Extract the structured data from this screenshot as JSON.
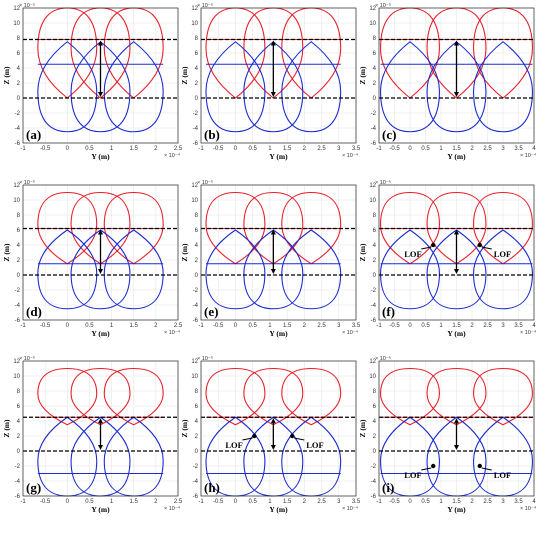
{
  "chart_data": {
    "type": "line",
    "axes": {
      "xlabel": "Y (m)",
      "ylabel": "Z (m)",
      "x_exponent_label": "× 10⁻⁴",
      "y_exponent_label": "× 10⁻⁵",
      "ylim": [
        -6,
        12
      ],
      "yticks": [
        -6,
        -4,
        -2,
        0,
        2,
        4,
        6,
        8,
        10,
        12
      ],
      "grid": true
    },
    "colors": {
      "upper": "#e8202a",
      "lower": "#1a2bd0",
      "guide": "#000000"
    },
    "xranges": [
      {
        "xlim": [
          -1,
          2.5
        ],
        "xticks": [
          -1,
          -0.5,
          0,
          0.5,
          1,
          1.5,
          2,
          2.5
        ],
        "centers": [
          0,
          0.75,
          1.5
        ]
      },
      {
        "xlim": [
          -1,
          3.5
        ],
        "xticks": [
          -1,
          -0.5,
          0,
          0.5,
          1,
          1.5,
          2,
          2.5,
          3,
          3.5
        ],
        "centers": [
          0,
          1.1,
          2.2
        ]
      },
      {
        "xlim": [
          -1,
          4
        ],
        "xticks": [
          -1,
          -0.5,
          0,
          0.5,
          1,
          1.5,
          2,
          2.5,
          3,
          3.5,
          4
        ],
        "centers": [
          0,
          1.5,
          3
        ]
      }
    ],
    "rows": [
      {
        "peak_upper": 12,
        "bottom_upper": 0,
        "top_lower": 7.5,
        "bottom_lower": -4.5,
        "guide_top": 7.8,
        "guide_bottom": 0,
        "flat_lower": 4.5
      },
      {
        "peak_upper": 11,
        "bottom_upper": 1.5,
        "top_lower": 6,
        "bottom_lower": -4.5,
        "guide_top": 6.2,
        "guide_bottom": 0,
        "flat_lower": 1.5
      },
      {
        "peak_upper": 11,
        "bottom_upper": 3.5,
        "top_lower": 4.5,
        "bottom_lower": -6,
        "guide_top": 4.5,
        "guide_bottom": 0,
        "flat_lower": -3
      }
    ],
    "panels": [
      {
        "label": "(a)",
        "row": 0,
        "col": 0,
        "lof": []
      },
      {
        "label": "(b)",
        "row": 0,
        "col": 1,
        "lof": []
      },
      {
        "label": "(c)",
        "row": 0,
        "col": 2,
        "lof": []
      },
      {
        "label": "(d)",
        "row": 1,
        "col": 0,
        "lof": []
      },
      {
        "label": "(e)",
        "row": 1,
        "col": 1,
        "lof": []
      },
      {
        "label": "(f)",
        "row": 1,
        "col": 2,
        "lof": [
          {
            "text": "LOF",
            "x": 0.75,
            "y": 4.0,
            "side": "left"
          },
          {
            "text": "LOF",
            "x": 2.25,
            "y": 4.0,
            "side": "right"
          }
        ]
      },
      {
        "label": "(g)",
        "row": 2,
        "col": 0,
        "lof": []
      },
      {
        "label": "(h)",
        "row": 2,
        "col": 1,
        "lof": [
          {
            "text": "LOF",
            "x": 0.55,
            "y": 2.0,
            "side": "left"
          },
          {
            "text": "LOF",
            "x": 1.65,
            "y": 2.0,
            "side": "right"
          }
        ]
      },
      {
        "label": "(i)",
        "row": 2,
        "col": 2,
        "lof": [
          {
            "text": "LOF",
            "x": 0.75,
            "y": -2.0,
            "side": "left"
          },
          {
            "text": "LOF",
            "x": 2.25,
            "y": -2.0,
            "side": "right"
          }
        ]
      }
    ]
  }
}
